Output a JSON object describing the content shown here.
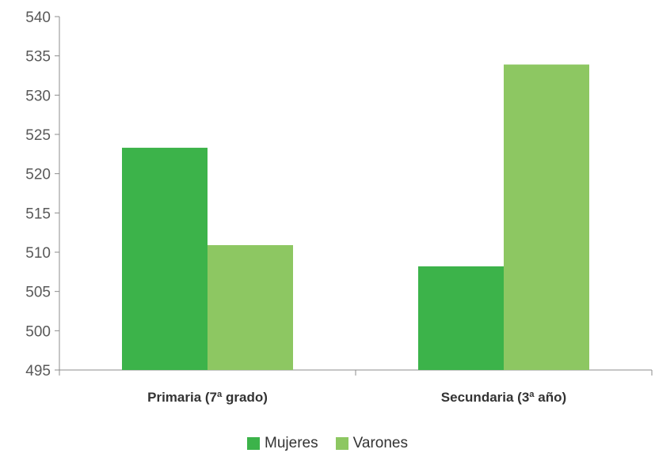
{
  "chart_data": {
    "type": "bar",
    "categories": [
      "Primaria (7ª grado)",
      "Secundaria (3ª año)"
    ],
    "series": [
      {
        "name": "Mujeres",
        "values": [
          523.3,
          508.2
        ],
        "color": "#3cb34a"
      },
      {
        "name": "Varones",
        "values": [
          510.9,
          533.9
        ],
        "color": "#8dc762"
      }
    ],
    "ylim": [
      495,
      540
    ],
    "yticks": [
      495,
      500,
      505,
      510,
      515,
      520,
      525,
      530,
      535,
      540
    ],
    "title": "",
    "xlabel": "",
    "ylabel": "",
    "legend_position": "bottom-center",
    "grid": false
  }
}
